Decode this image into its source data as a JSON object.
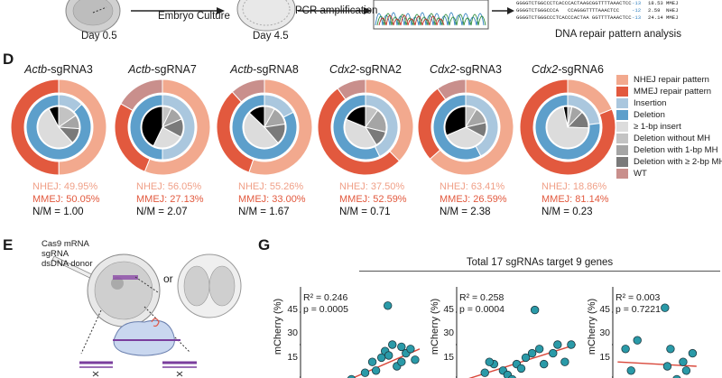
{
  "top": {
    "day05": "Day 0.5",
    "embryo_culture": "Embryo Culture",
    "day45": "Day 4.5",
    "pcr": "PCR amplification",
    "dna_repair": "DNA repair pattern analysis",
    "seq_rows": [
      {
        "seq": "GGGGTCTGGCCCTCACCCACTAAGCGGTTTTAAACTCC",
        "num": "-13",
        "val": "18.53",
        "type": "MMEJ"
      },
      {
        "seq": "GGGGTCTGGGCCCA   CCAGGGTTTTAAACTCC",
        "num": "-12",
        "val": "2.59",
        "type": "NHEJ"
      },
      {
        "seq": "GGGGTCTGGGCCCTCACCCACTAA GGTTTTAAACTCC",
        "num": "-13",
        "val": "24.14",
        "type": "MMEJ"
      }
    ]
  },
  "panel_d": {
    "letter": "D",
    "nhej_prefix": "NHEJ: ",
    "mmej_prefix": "MMEJ: ",
    "nm_prefix": "N/M = ",
    "donuts": [
      {
        "gene": "Actb",
        "sg": "-sgRNA3",
        "nhej": "49.95%",
        "mmej": "50.05%",
        "nm": "1.00",
        "outer": [
          49.95,
          50.05,
          0
        ],
        "inner": [
          5,
          35,
          10,
          7,
          8,
          35
        ]
      },
      {
        "gene": "Actb",
        "sg": "-sgRNA7",
        "nhej": "56.05%",
        "mmej": "27.13%",
        "nm": "2.07",
        "outer": [
          56.05,
          27.13,
          16.82
        ],
        "inner": [
          30,
          30,
          5,
          8,
          10,
          17
        ]
      },
      {
        "gene": "Actb",
        "sg": "-sgRNA8",
        "nhej": "55.26%",
        "mmej": "33.00%",
        "nm": "1.67",
        "outer": [
          55.26,
          33.0,
          11.74
        ],
        "inner": [
          8,
          38,
          5,
          9,
          10,
          30
        ]
      },
      {
        "gene": "Cdx2",
        "sg": "-sgRNA2",
        "nhej": "37.50%",
        "mmej": "52.59%",
        "nm": "0.71",
        "outer": [
          37.5,
          52.59,
          9.91
        ],
        "inner": [
          15,
          20,
          8,
          15,
          10,
          32
        ]
      },
      {
        "gene": "Cdx2",
        "sg": "-sgRNA3",
        "nhej": "63.41%",
        "mmej": "26.59%",
        "nm": "2.38",
        "outer": [
          63.41,
          26.59,
          10.0
        ],
        "inner": [
          22,
          30,
          6,
          9,
          8,
          25
        ]
      },
      {
        "gene": "Cdx2",
        "sg": "-sgRNA6",
        "nhej": "18.86%",
        "mmej": "81.14%",
        "nm": "0.23",
        "outer": [
          18.86,
          81.14,
          0
        ],
        "inner": [
          3,
          10,
          3,
          8,
          12,
          64
        ]
      }
    ],
    "legend": [
      {
        "label": "NHEJ repair pattern",
        "color": "#f2a98e"
      },
      {
        "label": "MMEJ repair pattern",
        "color": "#e2593e"
      },
      {
        "label": "Insertion",
        "color": "#aac7de"
      },
      {
        "label": "Deletion",
        "color": "#5d9fcb"
      },
      {
        "label": "≥ 1-bp insert",
        "color": "#dcdcdc"
      },
      {
        "label": "Deletion without MH",
        "color": "#c3c3c3"
      },
      {
        "label": "Deletion with 1-bp MH",
        "color": "#a5a5a5"
      },
      {
        "label": "Deletion with ≥ 2-bp MH",
        "color": "#7a7a7a"
      },
      {
        "label": "WT",
        "color": "#c98f8c"
      }
    ]
  },
  "panel_e": {
    "letter": "E",
    "inj1": "Cas9 mRNA",
    "inj2": "sgRNA",
    "inj3": "dsDNA donor",
    "or": "or"
  },
  "panel_g": {
    "letter": "G",
    "banner": "Total 17 sgRNAs target 9 genes",
    "ylabel": "mCherry (%)",
    "chart_data": [
      {
        "type": "scatter",
        "r2": "R² = 0.246",
        "p": "p = 0.0005",
        "yticks": [
          "45",
          "30",
          "15"
        ],
        "ylim": [
          5,
          55
        ],
        "points": [
          [
            0.2,
            8
          ],
          [
            0.35,
            12
          ],
          [
            0.45,
            11
          ],
          [
            0.55,
            14
          ],
          [
            0.62,
            9
          ],
          [
            0.7,
            17
          ],
          [
            0.78,
            22
          ],
          [
            0.82,
            18
          ],
          [
            0.88,
            24
          ],
          [
            0.92,
            27
          ],
          [
            0.96,
            25
          ],
          [
            1.0,
            30
          ],
          [
            1.05,
            20
          ],
          [
            1.1,
            22
          ],
          [
            1.15,
            26
          ],
          [
            1.2,
            28
          ],
          [
            1.25,
            23
          ],
          [
            1.1,
            29
          ],
          [
            0.95,
            48
          ]
        ],
        "fit": [
          [
            0.15,
            7
          ],
          [
            1.3,
            28
          ]
        ]
      },
      {
        "type": "scatter",
        "r2": "R² = 0.258",
        "p": "p = 0.0004",
        "yticks": [
          "45",
          "30",
          "15"
        ],
        "ylim": [
          5,
          55
        ],
        "points": [
          [
            0.15,
            12
          ],
          [
            0.3,
            17
          ],
          [
            0.4,
            21
          ],
          [
            0.5,
            18
          ],
          [
            0.55,
            16
          ],
          [
            0.6,
            14
          ],
          [
            0.65,
            21
          ],
          [
            0.7,
            19
          ],
          [
            0.75,
            24
          ],
          [
            0.82,
            26
          ],
          [
            0.9,
            28
          ],
          [
            0.95,
            21
          ],
          [
            1.05,
            26
          ],
          [
            1.1,
            30
          ],
          [
            1.18,
            22
          ],
          [
            1.25,
            30
          ],
          [
            0.35,
            22
          ],
          [
            0.85,
            46
          ]
        ],
        "fit": [
          [
            0.1,
            14
          ],
          [
            1.3,
            30
          ]
        ]
      },
      {
        "type": "scatter",
        "r2": "R² = 0.003",
        "p": "p = 0.7221",
        "yticks": [
          "45",
          "30",
          "15"
        ],
        "ylim": [
          5,
          55
        ],
        "points": [
          [
            0.15,
            28
          ],
          [
            0.22,
            18
          ],
          [
            0.3,
            32
          ],
          [
            0.45,
            12
          ],
          [
            0.55,
            8
          ],
          [
            0.6,
            12
          ],
          [
            0.68,
            20
          ],
          [
            0.72,
            28
          ],
          [
            0.8,
            14
          ],
          [
            0.88,
            22
          ],
          [
            0.92,
            18
          ],
          [
            1.0,
            26
          ],
          [
            0.65,
            47
          ]
        ],
        "fit": [
          [
            0.05,
            22
          ],
          [
            1.05,
            20
          ]
        ]
      }
    ]
  }
}
